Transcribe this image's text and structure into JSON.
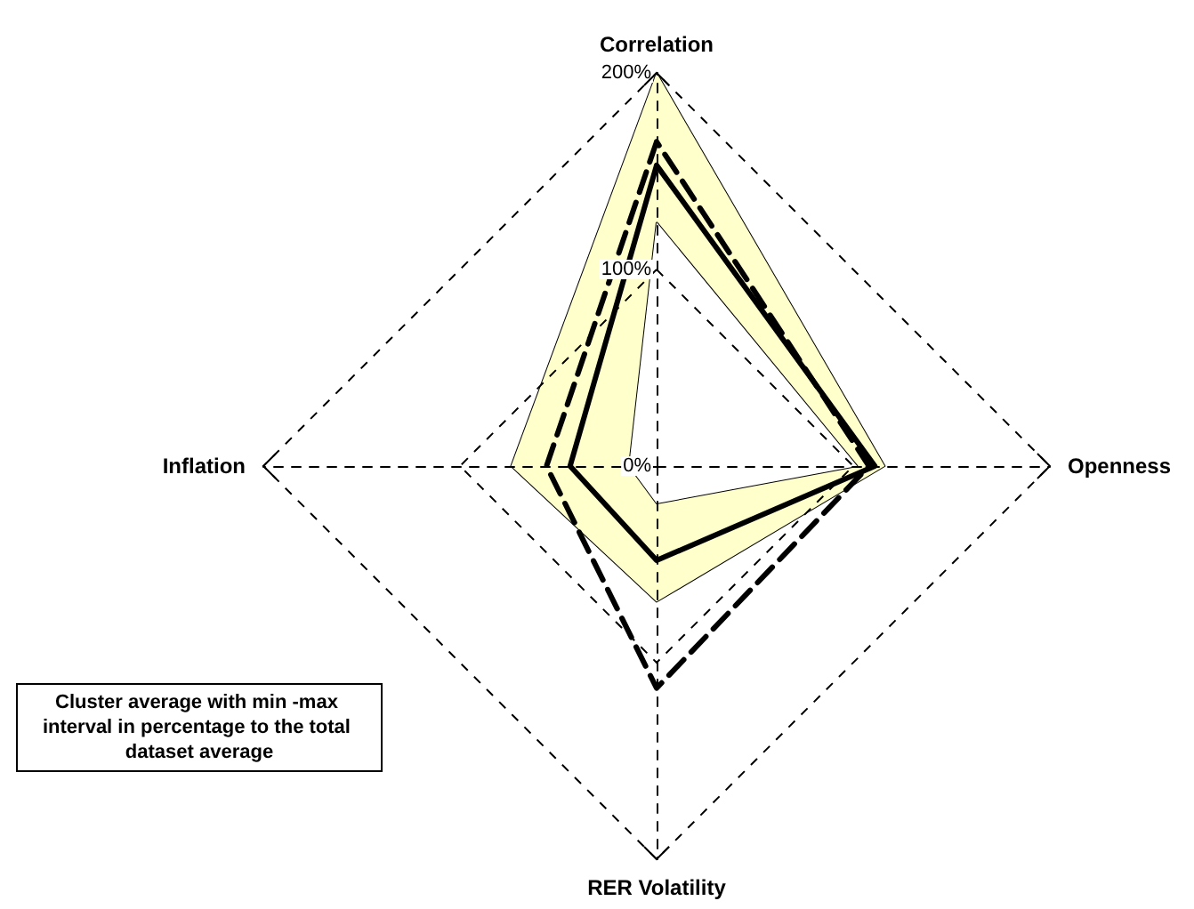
{
  "chart_data": {
    "type": "radar",
    "categories": [
      "Correlation",
      "Openness",
      "RER Volatility",
      "Inflation"
    ],
    "ylim": [
      0,
      200
    ],
    "yticks": [
      {
        "value": 0,
        "label": "0%"
      },
      {
        "value": 100,
        "label": "100%"
      },
      {
        "value": 200,
        "label": "200%"
      }
    ],
    "series": [
      {
        "color": "#ffffcc",
        "values": [
          200,
          116,
          69,
          74
        ]
      },
      {
        "color": "#ffffff",
        "values": [
          124,
          102,
          19,
          14
        ]
      },
      {
        "color": "#000000",
        "values": [
          153,
          111,
          48,
          44
        ],
        "line_style": "solid"
      },
      {
        "color": "#000000",
        "values": [
          165,
          108,
          113,
          56
        ],
        "line_style": "dashed"
      }
    ],
    "marker": "none",
    "grid": true,
    "annotations": [
      "Cluster average with min -max interval in percentage to the total dataset average"
    ]
  }
}
